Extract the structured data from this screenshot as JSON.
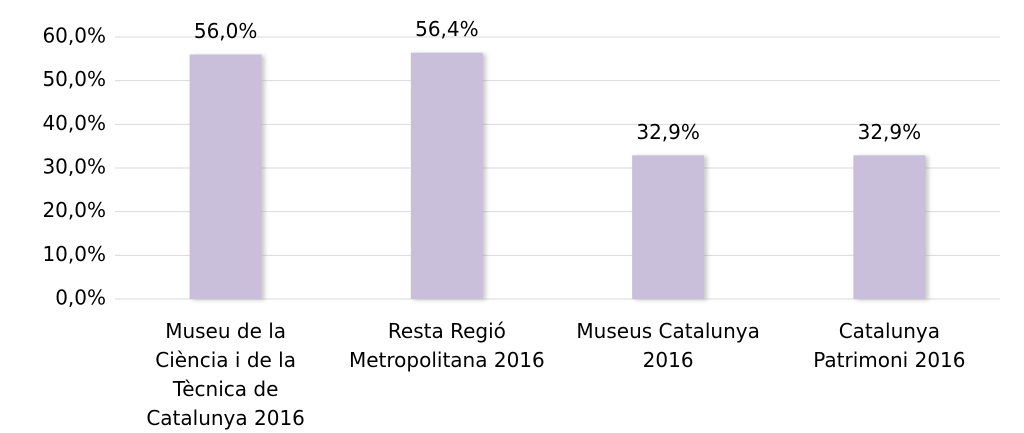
{
  "chart_data": {
    "type": "bar",
    "categories": [
      "Museu de la Ciència i de la Tècnica de Catalunya 2016",
      "Resta Regió Metropolitana 2016",
      "Museus Catalunya 2016",
      "Catalunya Patrimoni 2016"
    ],
    "values": [
      56.0,
      56.4,
      32.9,
      32.9
    ],
    "value_labels": [
      "56,0%",
      "56,4%",
      "32,9%",
      "32,9%"
    ],
    "color": "#c9bfdb",
    "ylim": [
      0,
      60
    ],
    "yticks": [
      {
        "value": 0,
        "label": "0,0%"
      },
      {
        "value": 10,
        "label": "10,0%"
      },
      {
        "value": 20,
        "label": "20,0%"
      },
      {
        "value": 30,
        "label": "30,0%"
      },
      {
        "value": 40,
        "label": "40,0%"
      },
      {
        "value": 50,
        "label": "50,0%"
      },
      {
        "value": 60,
        "label": "60,0%"
      }
    ],
    "grid": true
  }
}
